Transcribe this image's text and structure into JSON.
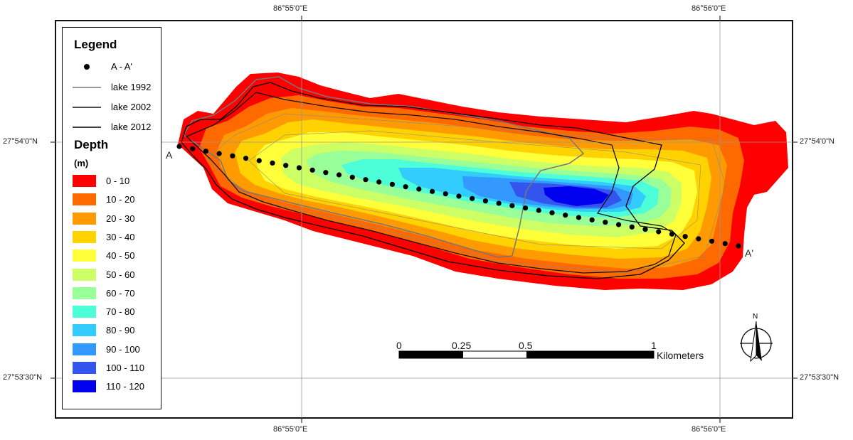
{
  "coords": {
    "top_left_lon": "86°55'0\"E",
    "top_right_lon": "86°56'0\"E",
    "bottom_left_lon": "86°55'0\"E",
    "bottom_right_lon": "86°56'0\"E",
    "left_upper_lat": "27°54'0\"N",
    "left_lower_lat": "27°53'30\"N",
    "right_upper_lat": "27°54'0\"N",
    "right_lower_lat": "27°53'30\"N"
  },
  "legend": {
    "title": "Legend",
    "profile_label": "A - A'",
    "lake_1992": "lake 1992",
    "lake_2002": "lake 2002",
    "lake_2012": "lake 2012",
    "depth_title": "Depth",
    "depth_unit": "(m)",
    "classes": [
      {
        "label": "0 - 10",
        "color": "#ff0000"
      },
      {
        "label": "10 - 20",
        "color": "#ff6a00"
      },
      {
        "label": "20 - 30",
        "color": "#ff9a00"
      },
      {
        "label": "30 - 40",
        "color": "#ffd200"
      },
      {
        "label": "40 - 50",
        "color": "#ffff3a"
      },
      {
        "label": "50 - 60",
        "color": "#ccff66"
      },
      {
        "label": "60 - 70",
        "color": "#99ff99"
      },
      {
        "label": "70 - 80",
        "color": "#4dffd9"
      },
      {
        "label": "80 - 90",
        "color": "#33ccff"
      },
      {
        "label": "90 - 100",
        "color": "#3399ff"
      },
      {
        "label": "100 - 110",
        "color": "#3355ee"
      },
      {
        "label": "110 - 120",
        "color": "#0000ee"
      }
    ]
  },
  "profile": {
    "start_label": "A",
    "end_label": "A'"
  },
  "scale": {
    "t0": "0",
    "t1": "0.25",
    "t2": "0.5",
    "t3": "1",
    "unit": "Kilometers"
  },
  "north": "N"
}
